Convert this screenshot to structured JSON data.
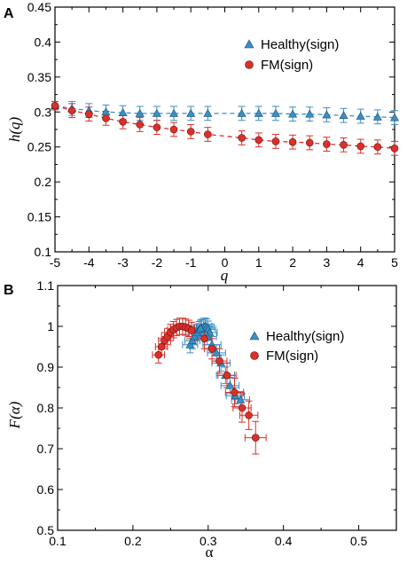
{
  "colors": {
    "healthy": "#3a8fc4",
    "fm": "#d9312a",
    "axis": "#000000"
  },
  "chart_data": [
    {
      "panel": "A",
      "type": "line",
      "xlabel": "q",
      "ylabel": "h(q)",
      "xlim": [
        -5,
        5
      ],
      "ylim": [
        0.1,
        0.45
      ],
      "xticks": [
        "-5",
        "-4",
        "-3",
        "-2",
        "-1",
        "0",
        "1",
        "2",
        "3",
        "4",
        "5"
      ],
      "yticks": [
        "0.1",
        "0.15",
        "0.2",
        "0.25",
        "0.3",
        "0.35",
        "0.4",
        "0.45"
      ],
      "legend": {
        "position": "top-right",
        "entries": [
          "Healthy(sign)",
          "FM(sign)"
        ]
      },
      "series": [
        {
          "name": "Healthy(sign)",
          "marker": "triangle",
          "line": "dashed",
          "color": "#3a8fc4",
          "x": [
            -5,
            -4.5,
            -4,
            -3.5,
            -3,
            -2.5,
            -2,
            -1.5,
            -1,
            -0.5,
            0.5,
            1,
            1.5,
            2,
            2.5,
            3,
            3.5,
            4,
            4.5,
            5
          ],
          "y": [
            0.309,
            0.305,
            0.302,
            0.3,
            0.299,
            0.298,
            0.298,
            0.298,
            0.298,
            0.298,
            0.298,
            0.298,
            0.298,
            0.297,
            0.297,
            0.296,
            0.295,
            0.294,
            0.293,
            0.292
          ],
          "err": [
            0.006,
            0.01,
            0.01,
            0.01,
            0.01,
            0.01,
            0.01,
            0.01,
            0.01,
            0.01,
            0.01,
            0.01,
            0.01,
            0.01,
            0.01,
            0.01,
            0.01,
            0.01,
            0.01,
            0.01
          ]
        },
        {
          "name": "FM(sign)",
          "marker": "circle",
          "line": "dashed",
          "color": "#d9312a",
          "x": [
            -5,
            -4.5,
            -4,
            -3.5,
            -3,
            -2.5,
            -2,
            -1.5,
            -1,
            -0.5,
            0.5,
            1,
            1.5,
            2,
            2.5,
            3,
            3.5,
            4,
            4.5,
            5
          ],
          "y": [
            0.309,
            0.302,
            0.297,
            0.291,
            0.286,
            0.282,
            0.278,
            0.275,
            0.272,
            0.268,
            0.263,
            0.26,
            0.258,
            0.257,
            0.256,
            0.254,
            0.253,
            0.251,
            0.25,
            0.248
          ],
          "err": [
            0.006,
            0.01,
            0.01,
            0.01,
            0.01,
            0.01,
            0.01,
            0.01,
            0.01,
            0.01,
            0.01,
            0.01,
            0.01,
            0.01,
            0.01,
            0.01,
            0.01,
            0.01,
            0.01,
            0.01
          ]
        }
      ]
    },
    {
      "panel": "B",
      "type": "scatter",
      "xlabel": "α",
      "ylabel": "F(α)",
      "xlim": [
        0.1,
        0.55
      ],
      "ylim": [
        0.5,
        1.1
      ],
      "xticks": [
        "0.1",
        "0.2",
        "0.3",
        "0.4",
        "0.5"
      ],
      "yticks": [
        "0.5",
        "0.6",
        "0.7",
        "0.8",
        "0.9",
        "1",
        "1.1"
      ],
      "legend": {
        "position": "top-right",
        "entries": [
          "Healthy(sign)",
          "FM(sign)"
        ]
      },
      "series": [
        {
          "name": "Healthy(sign)",
          "marker": "triangle",
          "color": "#3a8fc4",
          "x": [
            0.276,
            0.279,
            0.282,
            0.285,
            0.288,
            0.291,
            0.294,
            0.296,
            0.298,
            0.3,
            0.302,
            0.29,
            0.299,
            0.305,
            0.311,
            0.317,
            0.323,
            0.329,
            0.336,
            0.343
          ],
          "y": [
            0.955,
            0.965,
            0.975,
            0.985,
            0.992,
            0.997,
            1.0,
            1.0,
            0.998,
            0.993,
            0.985,
            0.995,
            0.975,
            0.955,
            0.935,
            0.91,
            0.88,
            0.855,
            0.83,
            0.82
          ],
          "xerr": [
            0.01,
            0.01,
            0.01,
            0.01,
            0.01,
            0.01,
            0.01,
            0.01,
            0.01,
            0.01,
            0.01,
            0.01,
            0.012,
            0.012,
            0.012,
            0.012,
            0.012,
            0.012,
            0.012,
            0.012
          ],
          "yerr": [
            0.02,
            0.02,
            0.02,
            0.02,
            0.02,
            0.02,
            0.02,
            0.02,
            0.02,
            0.02,
            0.02,
            0.02,
            0.02,
            0.02,
            0.02,
            0.02,
            0.02,
            0.02,
            0.02,
            0.02
          ]
        },
        {
          "name": "FM(sign)",
          "marker": "circle",
          "color": "#d9312a",
          "x": [
            0.234,
            0.238,
            0.242,
            0.246,
            0.25,
            0.254,
            0.258,
            0.262,
            0.266,
            0.27,
            0.274,
            0.278,
            0.295,
            0.305,
            0.315,
            0.325,
            0.335,
            0.345,
            0.354,
            0.363
          ],
          "y": [
            0.93,
            0.95,
            0.965,
            0.975,
            0.985,
            0.992,
            0.997,
            1.0,
            1.0,
            0.998,
            0.995,
            0.99,
            0.97,
            0.945,
            0.915,
            0.88,
            0.838,
            0.8,
            0.782,
            0.727
          ],
          "xerr": [
            0.008,
            0.008,
            0.008,
            0.008,
            0.008,
            0.008,
            0.008,
            0.008,
            0.008,
            0.008,
            0.008,
            0.008,
            0.01,
            0.01,
            0.01,
            0.012,
            0.012,
            0.012,
            0.012,
            0.014
          ],
          "yerr": [
            0.02,
            0.02,
            0.02,
            0.02,
            0.02,
            0.02,
            0.02,
            0.02,
            0.02,
            0.02,
            0.02,
            0.02,
            0.025,
            0.025,
            0.03,
            0.03,
            0.035,
            0.035,
            0.035,
            0.04
          ]
        }
      ]
    }
  ]
}
